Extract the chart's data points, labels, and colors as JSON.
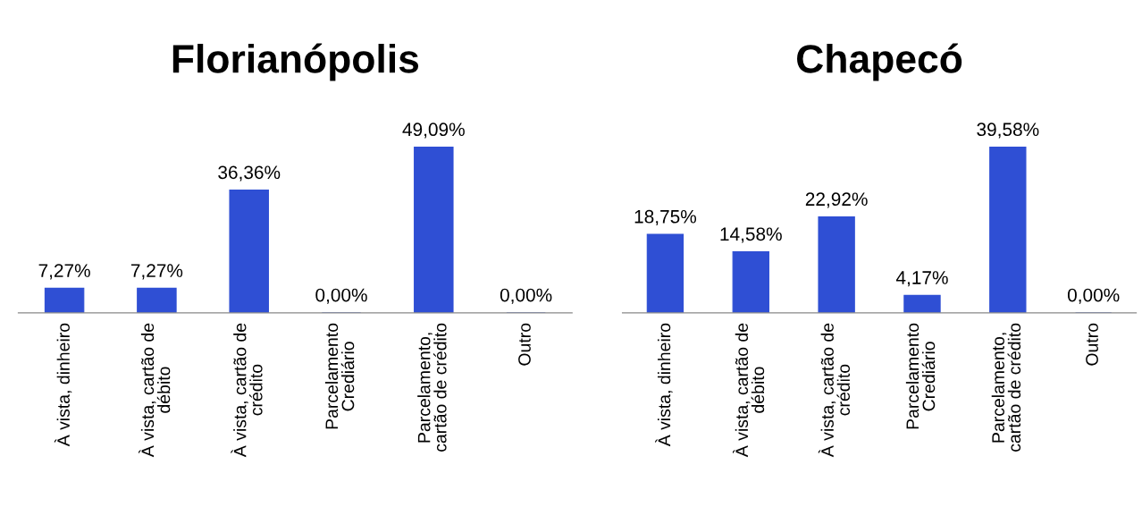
{
  "chart_data": [
    {
      "type": "bar",
      "title": "Florianópolis",
      "categories": [
        "À vista, dinheiro",
        "À vista, cartão de\ndébito",
        "À vista, cartão de\ncrédito",
        "Parcelamento\nCrediário",
        "Parcelamento,\ncartão de crédito",
        "Outro"
      ],
      "values": [
        7.27,
        7.27,
        36.36,
        0.0,
        49.09,
        0.0
      ],
      "value_labels": [
        "7,27%",
        "7,27%",
        "36,36%",
        "0,00%",
        "49,09%",
        "0,00%"
      ],
      "color": "#2f4fd4",
      "grid": false,
      "legend": false
    },
    {
      "type": "bar",
      "title": "Chapecó",
      "categories": [
        "À vista, dinheiro",
        "À vista, cartão de\ndébito",
        "À vista, cartão de\ncrédito",
        "Parcelamento\nCrediário",
        "Parcelamento,\ncartão de crédito",
        "Outro"
      ],
      "values": [
        18.75,
        14.58,
        22.92,
        4.17,
        39.58,
        0.0
      ],
      "value_labels": [
        "18,75%",
        "14,58%",
        "22,92%",
        "4,17%",
        "39,58%",
        "0,00%"
      ],
      "color": "#2f4fd4",
      "grid": false,
      "legend": false
    }
  ]
}
